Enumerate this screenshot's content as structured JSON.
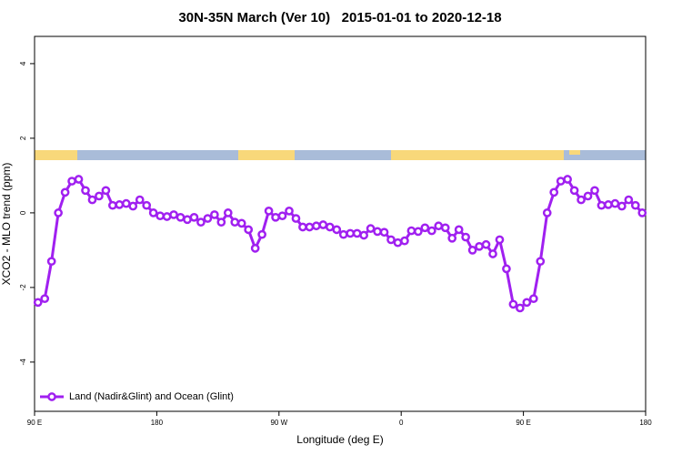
{
  "chart_data": {
    "type": "line",
    "title": "30N-35N March (Ver 10)   2015-01-01 to 2020-12-18",
    "xlabel": "Longitude (deg E)",
    "ylabel": "XCO2 - MLO trend (ppm)",
    "xlim": [
      90,
      540
    ],
    "ylim": [
      -5.32,
      4.73
    ],
    "xticks": [
      {
        "value": 90,
        "label": "90 E"
      },
      {
        "value": 180,
        "label": "180"
      },
      {
        "value": 270,
        "label": "90 W"
      },
      {
        "value": 360,
        "label": "0"
      },
      {
        "value": 450,
        "label": "90 E"
      },
      {
        "value": 540,
        "label": "180"
      }
    ],
    "yticks": [
      -4,
      -2,
      0,
      2,
      4
    ],
    "legend": "bottom-left",
    "x": [
      92.5,
      97.5,
      102.5,
      107.5,
      112.5,
      117.5,
      122.5,
      127.5,
      132.5,
      137.5,
      142.5,
      147.5,
      152.5,
      157.5,
      162.5,
      167.5,
      172.5,
      177.5,
      182.5,
      187.5,
      192.5,
      197.5,
      202.5,
      207.5,
      212.5,
      217.5,
      222.5,
      227.5,
      232.5,
      237.5,
      242.5,
      247.5,
      252.5,
      257.5,
      262.5,
      267.5,
      272.5,
      277.5,
      282.5,
      287.5,
      292.5,
      297.5,
      302.5,
      307.5,
      312.5,
      317.5,
      322.5,
      327.5,
      332.5,
      337.5,
      342.5,
      347.5,
      352.5,
      357.5,
      362.5,
      367.5,
      372.5,
      377.5,
      382.5,
      387.5,
      392.5,
      397.5,
      402.5,
      407.5,
      412.5,
      417.5,
      422.5,
      427.5,
      432.5,
      437.5,
      442.5,
      447.5,
      452.5,
      457.5,
      462.5,
      467.5,
      472.5,
      477.5,
      482.5,
      487.5,
      492.5,
      497.5,
      502.5,
      507.5,
      512.5,
      517.5,
      522.5,
      527.5,
      532.5,
      537.5
    ],
    "series": [
      {
        "name": "Land (Nadir&Glint) and Ocean (Glint)",
        "color": "#a020f0",
        "values": [
          -2.4,
          -2.3,
          -1.3,
          0,
          0.55,
          0.85,
          0.9,
          0.6,
          0.35,
          0.45,
          0.6,
          0.2,
          0.22,
          0.25,
          0.18,
          0.35,
          0.2,
          0,
          -0.08,
          -0.1,
          -0.05,
          -0.12,
          -0.18,
          -0.12,
          -0.25,
          -0.15,
          -0.05,
          -0.25,
          0,
          -0.25,
          -0.28,
          -0.45,
          -0.95,
          -0.58,
          0.05,
          -0.12,
          -0.08,
          0.05,
          -0.15,
          -0.38,
          -0.38,
          -0.35,
          -0.32,
          -0.38,
          -0.45,
          -0.58,
          -0.55,
          -0.55,
          -0.6,
          -0.42,
          -0.5,
          -0.52,
          -0.72,
          -0.8,
          -0.75,
          -0.48,
          -0.5,
          -0.4,
          -0.48,
          -0.35,
          -0.4,
          -0.68,
          -0.45,
          -0.65,
          -1.0,
          -0.9,
          -0.85,
          -1.1,
          -0.72,
          -1.5,
          -2.45,
          -2.55,
          -2.4,
          -2.3,
          -1.3,
          0,
          0.55,
          0.85,
          0.9,
          0.6,
          0.35,
          0.45,
          0.6,
          0.2,
          0.22,
          0.25,
          0.18,
          0.35,
          0.2,
          0
        ]
      }
    ]
  }
}
